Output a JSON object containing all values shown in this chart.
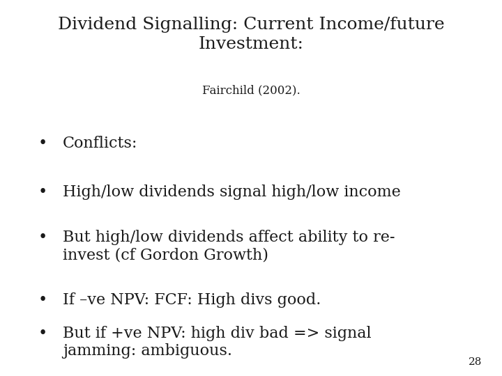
{
  "background_color": "#ffffff",
  "title_line1": "Dividend Signalling: Current Income/future",
  "title_line2": "Investment:",
  "subtitle": "Fairchild (2002).",
  "title_fontsize": 18,
  "subtitle_fontsize": 12,
  "bullet_fontsize": 16,
  "page_number": "28",
  "page_number_fontsize": 11,
  "bullets": [
    "Conflicts:",
    "High/low dividends signal high/low income",
    "But high/low dividends affect ability to re-\ninvest (cf Gordon Growth)",
    "If –ve NPV: FCF: High divs good.",
    "But if +ve NPV: high div bad => signal\njamming: ambiguous."
  ],
  "text_color": "#1a1a1a",
  "font_family": "URW Bookman",
  "font_family_fallback": "DejaVu Serif"
}
